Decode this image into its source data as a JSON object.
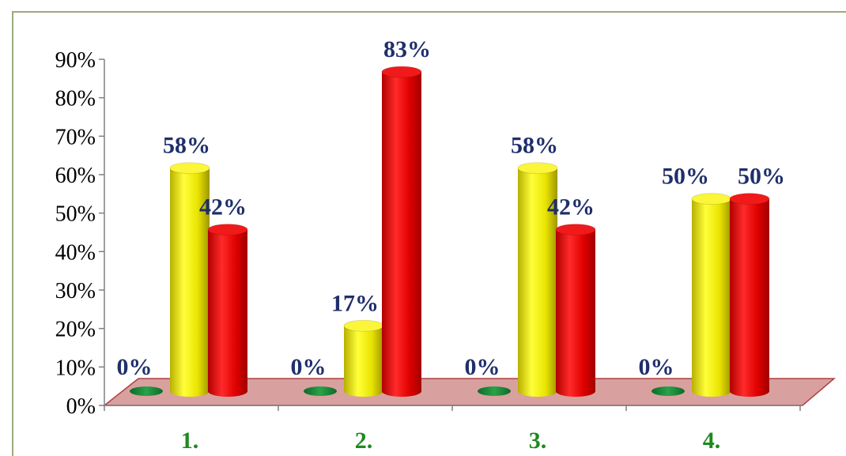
{
  "chart_data": {
    "type": "bar",
    "categories": [
      "1.",
      "2.",
      "3.",
      "4."
    ],
    "series": [
      {
        "values": [
          0,
          0,
          0,
          0
        ],
        "labels": [
          "0%",
          "0%",
          "0%",
          "0%"
        ]
      },
      {
        "values": [
          58,
          17,
          58,
          50
        ],
        "labels": [
          "58%",
          "17%",
          "58%",
          "50%"
        ]
      },
      {
        "values": [
          42,
          83,
          42,
          50
        ],
        "labels": [
          "42%",
          "83%",
          "42%",
          "50%"
        ]
      }
    ],
    "yticks": [
      "0%",
      "10%",
      "20%",
      "30%",
      "40%",
      "50%",
      "60%",
      "70%",
      "80%",
      "90%"
    ],
    "ylim": [
      0,
      90
    ],
    "title": "",
    "xlabel": "",
    "ylabel": "",
    "colors": {
      "series": [
        "#1f8a3a",
        "#f2ef00",
        "#e60000"
      ],
      "category_label": "#1e8a1e",
      "data_label": "#1f2f6b",
      "floor": "#d9a0a0",
      "floor_edge": "#b04040",
      "frame": "#9aab7a"
    }
  }
}
